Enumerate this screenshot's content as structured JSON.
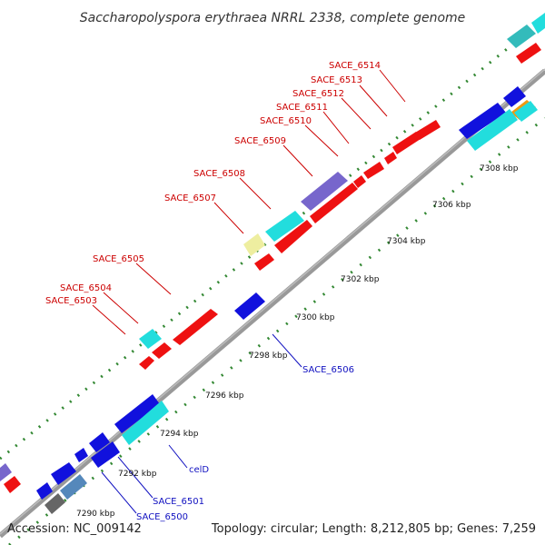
{
  "title": "Saccharopolyspora erythraea NRRL 2338, complete genome",
  "footer": {
    "accession": "Accession: NC_009142",
    "summary": "Topology: circular; Length: 8,212,805 bp; Genes: 7,259"
  },
  "colors": {
    "backbone": "#999999",
    "red": "#ee1111",
    "blue": "#1111dd",
    "cyan": "#22dddd",
    "purple": "#7766cc",
    "yellow": "#eeeea0",
    "teal": "#33bbbb",
    "gray": "#666666",
    "steel": "#5588bb",
    "orange": "#ee9911",
    "tick": "#338833"
  },
  "scale_labels": [
    "7290 kbp",
    "7292 kbp",
    "7294 kbp",
    "7296 kbp",
    "7298 kbp",
    "7300 kbp",
    "7302 kbp",
    "7304 kbp",
    "7306 kbp",
    "7308 kbp"
  ],
  "gene_labels_top": [
    "SACE_6503",
    "SACE_6504",
    "SACE_6505",
    "SACE_6507",
    "SACE_6508",
    "SACE_6509",
    "SACE_6510",
    "SACE_6511",
    "SACE_6512",
    "SACE_6513",
    "SACE_6514"
  ],
  "gene_labels_bottom": [
    "SACE_6500",
    "SACE_6501",
    "celD",
    "SACE_6506"
  ]
}
